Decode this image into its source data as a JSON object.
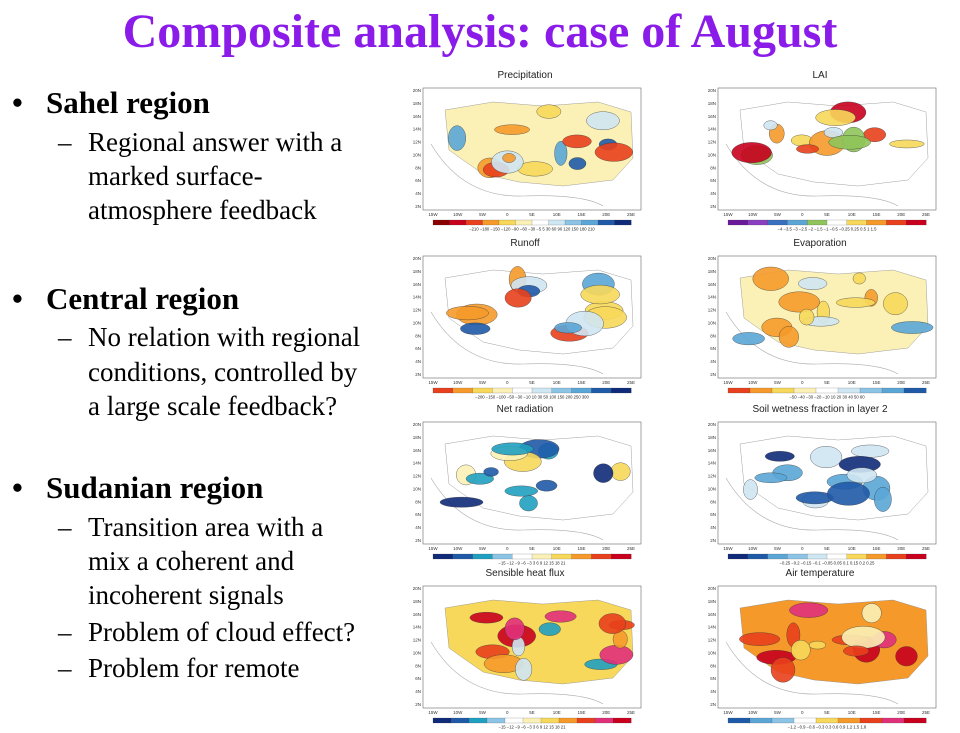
{
  "title": "Composite analysis: case of August",
  "bullets": [
    {
      "heading": "Sahel region",
      "subs": [
        "Regional answer with a marked surface-atmosphere feedback"
      ]
    },
    {
      "heading": "Central region",
      "subs": [
        "No relation with regional conditions, controlled by a large scale feedback?"
      ]
    },
    {
      "heading": "Sudanian region",
      "subs": [
        "Transition area with a mix a coherent and incoherent signals",
        "Problem of cloud effect?",
        "Problem for remote"
      ]
    }
  ],
  "bullet_glyph": "•",
  "dash_glyph": "–",
  "sub_lines": {
    "s0": [
      "Regional answer with a",
      "marked surface-",
      "atmosphere feedback"
    ],
    "s1": [
      "No relation with regional",
      "conditions, controlled by",
      "a large scale feedback?"
    ],
    "s2a": [
      "Transition area with a",
      "mix a coherent and",
      "incoherent signals"
    ],
    "s2b": [
      "Problem of cloud effect?"
    ],
    "s2c": [
      "Problem for remote"
    ]
  },
  "panels": [
    {
      "title": "Precipitation",
      "scale": "diverging-red-blue",
      "colorbar": "−210 −180 −150 −120 −90 −60 −30 −5 5 30 60 90 120 150 180 210"
    },
    {
      "title": "LAI",
      "scale": "diverging-purple-red",
      "colorbar": "−4 −3.5 −3 −2.5 −2 −1.5 −1 −0.5 −0.25 0.25 0.5 1 1.5"
    },
    {
      "title": "Runoff",
      "scale": "diverging-red-blue",
      "colorbar": "−200 −150 −100 −50 −30 −10 10 30 50 100 150 200 250 300"
    },
    {
      "title": "Evaporation",
      "scale": "diverging-red-blue",
      "colorbar": "−50 −40 −30 −20 −10 10 20 30 40 50 60"
    },
    {
      "title": "Net radiation",
      "scale": "diverging-blue-red",
      "colorbar": "−15 −12 −9 −6 −3 3 6 9 12 15 18 21"
    },
    {
      "title": "Soil wetness fraction in layer 2",
      "scale": "diverging-blue-red",
      "colorbar": "−0.25 −0.2 −0.15 −0.1 −0.05 0.05 0.1 0.15 0.2 0.25"
    },
    {
      "title": "Sensible heat flux",
      "scale": "diverging-blue-red",
      "colorbar": "−15 −12 −9 −6 −3 3 6 9 12 15 18 21"
    },
    {
      "title": "Air temperature",
      "scale": "diverging-blue-red",
      "colorbar": "−1.2 −0.9 −0.6 −0.3 0.3 0.6 0.9 1.2 1.5 1.8"
    }
  ],
  "axis_labels": {
    "lat": [
      "20N",
      "18N",
      "16N",
      "14N",
      "12N",
      "10N",
      "8N",
      "6N",
      "4N",
      "2N"
    ],
    "lon": [
      "15W",
      "10W",
      "5W",
      "0",
      "5E",
      "10E",
      "15E",
      "20E",
      "25E"
    ]
  },
  "colors": {
    "title": "#8a1be8",
    "red_strong": "#c8001e",
    "red": "#e8401c",
    "orange": "#f59a2a",
    "yellow": "#f7d85a",
    "pale_yellow": "#fbf1b6",
    "pale_blue": "#cfe6f3",
    "blue": "#5aa6d6",
    "blue_strong": "#1f5aa8",
    "navy": "#0f2a78",
    "teal": "#20a0c0",
    "magenta": "#e0307a",
    "green": "#8fc45a"
  }
}
